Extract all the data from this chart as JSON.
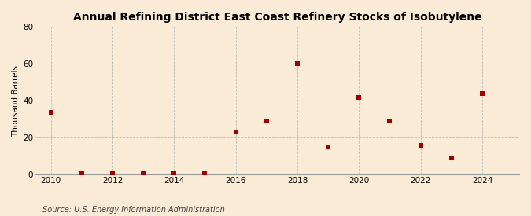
{
  "title": "Annual Refining District East Coast Refinery Stocks of Isobutylene",
  "ylabel": "Thousand Barrels",
  "source": "Source: U.S. Energy Information Administration",
  "background_color": "#faebd7",
  "plot_bg_color": "#faebd7",
  "marker_color": "#a00000",
  "marker_size": 18,
  "xlim": [
    2009.5,
    2025.2
  ],
  "ylim": [
    0,
    80
  ],
  "yticks": [
    0,
    20,
    40,
    60,
    80
  ],
  "xticks": [
    2010,
    2012,
    2014,
    2016,
    2018,
    2020,
    2022,
    2024
  ],
  "data": [
    {
      "year": 2010,
      "value": 34
    },
    {
      "year": 2011,
      "value": 0.5
    },
    {
      "year": 2012,
      "value": 0.5
    },
    {
      "year": 2013,
      "value": 0.5
    },
    {
      "year": 2014,
      "value": 0.5
    },
    {
      "year": 2015,
      "value": 0.5
    },
    {
      "year": 2016,
      "value": 23
    },
    {
      "year": 2017,
      "value": 29
    },
    {
      "year": 2018,
      "value": 60
    },
    {
      "year": 2019,
      "value": 15
    },
    {
      "year": 2020,
      "value": 42
    },
    {
      "year": 2021,
      "value": 29
    },
    {
      "year": 2022,
      "value": 16
    },
    {
      "year": 2023,
      "value": 9
    },
    {
      "year": 2024,
      "value": 44
    }
  ]
}
